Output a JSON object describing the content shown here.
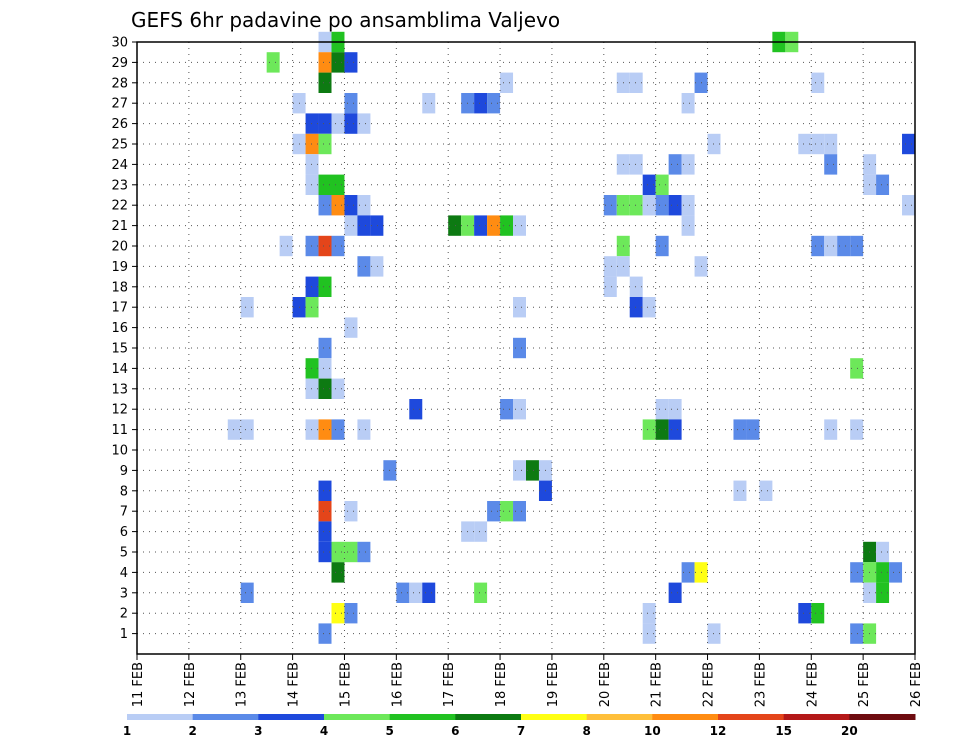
{
  "chart_data": {
    "type": "heatmap",
    "title": "GEFS 6hr padavine po ansamblima Valjevo",
    "xlabel": "",
    "ylabel": "",
    "x_tick_labels": [
      "11 FEB",
      "12 FEB",
      "13 FEB",
      "14 FEB",
      "15 FEB",
      "16 FEB",
      "17 FEB",
      "18 FEB",
      "19 FEB",
      "20 FEB",
      "21 FEB",
      "22 FEB",
      "23 FEB",
      "24 FEB",
      "25 FEB",
      "26 FEB"
    ],
    "y_tick_labels": [
      "1",
      "2",
      "3",
      "4",
      "5",
      "6",
      "7",
      "8",
      "9",
      "10",
      "11",
      "12",
      "13",
      "14",
      "15",
      "16",
      "17",
      "18",
      "19",
      "20",
      "21",
      "22",
      "23",
      "24",
      "25",
      "26",
      "27",
      "28",
      "29",
      "30"
    ],
    "x_range_days": [
      11,
      26
    ],
    "y_range": [
      0,
      30
    ],
    "time_step_hours": 6,
    "grid": true,
    "colorbar": {
      "placement": "bottom",
      "levels": [
        "1",
        "2",
        "3",
        "4",
        "5",
        "6",
        "7",
        "8",
        "10",
        "12",
        "15",
        "20"
      ],
      "colors": [
        "#b9cdf5",
        "#5b8ae8",
        "#1e49dc",
        "#6de85a",
        "#21c221",
        "#0d7a12",
        "#ffff14",
        "#ffbf3a",
        "#ff8c12",
        "#e4451a",
        "#b41818",
        "#6e0c10"
      ]
    },
    "cells": [
      {
        "member": 30,
        "day": 14.625,
        "level": 1
      },
      {
        "member": 30,
        "day": 14.875,
        "level": 5
      },
      {
        "member": 30,
        "day": 23.375,
        "level": 5
      },
      {
        "member": 30,
        "day": 23.625,
        "level": 4
      },
      {
        "member": 29,
        "day": 13.625,
        "level": 4
      },
      {
        "member": 29,
        "day": 14.625,
        "level": 10
      },
      {
        "member": 29,
        "day": 14.875,
        "level": 6
      },
      {
        "member": 29,
        "day": 15.125,
        "level": 3
      },
      {
        "member": 28,
        "day": 14.625,
        "level": 6
      },
      {
        "member": 28,
        "day": 18.125,
        "level": 1
      },
      {
        "member": 28,
        "day": 20.375,
        "level": 1
      },
      {
        "member": 28,
        "day": 20.625,
        "level": 1
      },
      {
        "member": 28,
        "day": 21.875,
        "level": 2
      },
      {
        "member": 28,
        "day": 24.125,
        "level": 1
      },
      {
        "member": 27,
        "day": 14.125,
        "level": 1
      },
      {
        "member": 27,
        "day": 15.125,
        "level": 2
      },
      {
        "member": 27,
        "day": 16.625,
        "level": 1
      },
      {
        "member": 27,
        "day": 17.375,
        "level": 2
      },
      {
        "member": 27,
        "day": 17.625,
        "level": 3
      },
      {
        "member": 27,
        "day": 17.875,
        "level": 2
      },
      {
        "member": 27,
        "day": 21.625,
        "level": 1
      },
      {
        "member": 26,
        "day": 14.375,
        "level": 3
      },
      {
        "member": 26,
        "day": 14.625,
        "level": 3
      },
      {
        "member": 26,
        "day": 14.875,
        "level": 1
      },
      {
        "member": 26,
        "day": 15.125,
        "level": 3
      },
      {
        "member": 26,
        "day": 15.375,
        "level": 1
      },
      {
        "member": 25,
        "day": 14.125,
        "level": 1
      },
      {
        "member": 25,
        "day": 14.375,
        "level": 10
      },
      {
        "member": 25,
        "day": 14.625,
        "level": 4
      },
      {
        "member": 25,
        "day": 22.125,
        "level": 1
      },
      {
        "member": 25,
        "day": 23.875,
        "level": 1
      },
      {
        "member": 25,
        "day": 24.125,
        "level": 1
      },
      {
        "member": 25,
        "day": 24.375,
        "level": 1
      },
      {
        "member": 25,
        "day": 25.875,
        "level": 3
      },
      {
        "member": 24,
        "day": 14.375,
        "level": 1
      },
      {
        "member": 24,
        "day": 20.375,
        "level": 1
      },
      {
        "member": 24,
        "day": 20.625,
        "level": 1
      },
      {
        "member": 24,
        "day": 21.375,
        "level": 2
      },
      {
        "member": 24,
        "day": 21.625,
        "level": 1
      },
      {
        "member": 24,
        "day": 24.375,
        "level": 2
      },
      {
        "member": 24,
        "day": 25.125,
        "level": 1
      },
      {
        "member": 23,
        "day": 14.375,
        "level": 1
      },
      {
        "member": 23,
        "day": 14.625,
        "level": 5
      },
      {
        "member": 23,
        "day": 14.875,
        "level": 5
      },
      {
        "member": 23,
        "day": 20.875,
        "level": 3
      },
      {
        "member": 23,
        "day": 21.125,
        "level": 4
      },
      {
        "member": 23,
        "day": 25.125,
        "level": 1
      },
      {
        "member": 23,
        "day": 25.375,
        "level": 2
      },
      {
        "member": 22,
        "day": 14.625,
        "level": 2
      },
      {
        "member": 22,
        "day": 14.875,
        "level": 10
      },
      {
        "member": 22,
        "day": 15.125,
        "level": 3
      },
      {
        "member": 22,
        "day": 15.375,
        "level": 1
      },
      {
        "member": 22,
        "day": 20.125,
        "level": 2
      },
      {
        "member": 22,
        "day": 20.375,
        "level": 4
      },
      {
        "member": 22,
        "day": 20.625,
        "level": 4
      },
      {
        "member": 22,
        "day": 20.875,
        "level": 1
      },
      {
        "member": 22,
        "day": 21.125,
        "level": 2
      },
      {
        "member": 22,
        "day": 21.375,
        "level": 3
      },
      {
        "member": 22,
        "day": 21.625,
        "level": 1
      },
      {
        "member": 22,
        "day": 25.875,
        "level": 1
      },
      {
        "member": 21,
        "day": 15.125,
        "level": 1
      },
      {
        "member": 21,
        "day": 15.375,
        "level": 3
      },
      {
        "member": 21,
        "day": 15.625,
        "level": 3
      },
      {
        "member": 21,
        "day": 17.125,
        "level": 6
      },
      {
        "member": 21,
        "day": 17.375,
        "level": 4
      },
      {
        "member": 21,
        "day": 17.625,
        "level": 3
      },
      {
        "member": 21,
        "day": 17.875,
        "level": 10
      },
      {
        "member": 21,
        "day": 18.125,
        "level": 5
      },
      {
        "member": 21,
        "day": 18.375,
        "level": 1
      },
      {
        "member": 21,
        "day": 21.625,
        "level": 1
      },
      {
        "member": 20,
        "day": 13.875,
        "level": 1
      },
      {
        "member": 20,
        "day": 14.375,
        "level": 2
      },
      {
        "member": 20,
        "day": 14.625,
        "level": 12
      },
      {
        "member": 20,
        "day": 14.875,
        "level": 2
      },
      {
        "member": 20,
        "day": 20.375,
        "level": 4
      },
      {
        "member": 20,
        "day": 21.125,
        "level": 2
      },
      {
        "member": 20,
        "day": 24.125,
        "level": 2
      },
      {
        "member": 20,
        "day": 24.375,
        "level": 1
      },
      {
        "member": 20,
        "day": 24.625,
        "level": 2
      },
      {
        "member": 20,
        "day": 24.875,
        "level": 2
      },
      {
        "member": 19,
        "day": 15.375,
        "level": 2
      },
      {
        "member": 19,
        "day": 15.625,
        "level": 1
      },
      {
        "member": 19,
        "day": 20.125,
        "level": 1
      },
      {
        "member": 19,
        "day": 20.375,
        "level": 1
      },
      {
        "member": 19,
        "day": 21.875,
        "level": 1
      },
      {
        "member": 18,
        "day": 14.375,
        "level": 3
      },
      {
        "member": 18,
        "day": 14.625,
        "level": 5
      },
      {
        "member": 18,
        "day": 20.125,
        "level": 1
      },
      {
        "member": 18,
        "day": 20.625,
        "level": 1
      },
      {
        "member": 17,
        "day": 13.125,
        "level": 1
      },
      {
        "member": 17,
        "day": 14.125,
        "level": 3
      },
      {
        "member": 17,
        "day": 14.375,
        "level": 4
      },
      {
        "member": 17,
        "day": 18.375,
        "level": 1
      },
      {
        "member": 17,
        "day": 20.625,
        "level": 3
      },
      {
        "member": 17,
        "day": 20.875,
        "level": 1
      },
      {
        "member": 16,
        "day": 15.125,
        "level": 1
      },
      {
        "member": 15,
        "day": 14.625,
        "level": 2
      },
      {
        "member": 15,
        "day": 18.375,
        "level": 2
      },
      {
        "member": 14,
        "day": 14.375,
        "level": 5
      },
      {
        "member": 14,
        "day": 14.625,
        "level": 1
      },
      {
        "member": 14,
        "day": 24.875,
        "level": 4
      },
      {
        "member": 13,
        "day": 14.375,
        "level": 1
      },
      {
        "member": 13,
        "day": 14.625,
        "level": 6
      },
      {
        "member": 13,
        "day": 14.875,
        "level": 1
      },
      {
        "member": 12,
        "day": 16.375,
        "level": 3
      },
      {
        "member": 12,
        "day": 18.125,
        "level": 2
      },
      {
        "member": 12,
        "day": 18.375,
        "level": 1
      },
      {
        "member": 12,
        "day": 21.125,
        "level": 1
      },
      {
        "member": 12,
        "day": 21.375,
        "level": 1
      },
      {
        "member": 11,
        "day": 12.875,
        "level": 1
      },
      {
        "member": 11,
        "day": 13.125,
        "level": 1
      },
      {
        "member": 11,
        "day": 14.375,
        "level": 1
      },
      {
        "member": 11,
        "day": 14.625,
        "level": 10
      },
      {
        "member": 11,
        "day": 14.875,
        "level": 2
      },
      {
        "member": 11,
        "day": 15.375,
        "level": 1
      },
      {
        "member": 11,
        "day": 20.875,
        "level": 4
      },
      {
        "member": 11,
        "day": 21.125,
        "level": 6
      },
      {
        "member": 11,
        "day": 21.375,
        "level": 3
      },
      {
        "member": 11,
        "day": 22.625,
        "level": 2
      },
      {
        "member": 11,
        "day": 22.875,
        "level": 2
      },
      {
        "member": 11,
        "day": 24.375,
        "level": 1
      },
      {
        "member": 11,
        "day": 24.875,
        "level": 1
      },
      {
        "member": 9,
        "day": 15.875,
        "level": 2
      },
      {
        "member": 9,
        "day": 18.375,
        "level": 1
      },
      {
        "member": 9,
        "day": 18.625,
        "level": 6
      },
      {
        "member": 9,
        "day": 18.875,
        "level": 1
      },
      {
        "member": 8,
        "day": 14.625,
        "level": 3
      },
      {
        "member": 8,
        "day": 18.875,
        "level": 3
      },
      {
        "member": 8,
        "day": 22.625,
        "level": 1
      },
      {
        "member": 8,
        "day": 23.125,
        "level": 1
      },
      {
        "member": 7,
        "day": 14.625,
        "level": 12
      },
      {
        "member": 7,
        "day": 15.125,
        "level": 1
      },
      {
        "member": 7,
        "day": 17.875,
        "level": 2
      },
      {
        "member": 7,
        "day": 18.125,
        "level": 4
      },
      {
        "member": 7,
        "day": 18.375,
        "level": 2
      },
      {
        "member": 6,
        "day": 14.625,
        "level": 3
      },
      {
        "member": 6,
        "day": 17.375,
        "level": 1
      },
      {
        "member": 6,
        "day": 17.625,
        "level": 1
      },
      {
        "member": 5,
        "day": 14.625,
        "level": 3
      },
      {
        "member": 5,
        "day": 14.875,
        "level": 4
      },
      {
        "member": 5,
        "day": 15.125,
        "level": 4
      },
      {
        "member": 5,
        "day": 15.375,
        "level": 2
      },
      {
        "member": 5,
        "day": 25.125,
        "level": 6
      },
      {
        "member": 5,
        "day": 25.375,
        "level": 1
      },
      {
        "member": 4,
        "day": 14.875,
        "level": 6
      },
      {
        "member": 4,
        "day": 21.625,
        "level": 2
      },
      {
        "member": 4,
        "day": 21.875,
        "level": 7
      },
      {
        "member": 4,
        "day": 24.875,
        "level": 2
      },
      {
        "member": 4,
        "day": 25.125,
        "level": 4
      },
      {
        "member": 4,
        "day": 25.375,
        "level": 5
      },
      {
        "member": 4,
        "day": 25.625,
        "level": 2
      },
      {
        "member": 3,
        "day": 13.125,
        "level": 2
      },
      {
        "member": 3,
        "day": 16.125,
        "level": 2
      },
      {
        "member": 3,
        "day": 16.375,
        "level": 1
      },
      {
        "member": 3,
        "day": 16.625,
        "level": 3
      },
      {
        "member": 3,
        "day": 17.625,
        "level": 4
      },
      {
        "member": 3,
        "day": 21.375,
        "level": 3
      },
      {
        "member": 3,
        "day": 25.125,
        "level": 1
      },
      {
        "member": 3,
        "day": 25.375,
        "level": 5
      },
      {
        "member": 2,
        "day": 14.875,
        "level": 7
      },
      {
        "member": 2,
        "day": 15.125,
        "level": 2
      },
      {
        "member": 2,
        "day": 20.875,
        "level": 1
      },
      {
        "member": 2,
        "day": 23.875,
        "level": 3
      },
      {
        "member": 2,
        "day": 24.125,
        "level": 5
      },
      {
        "member": 1,
        "day": 14.625,
        "level": 2
      },
      {
        "member": 1,
        "day": 20.875,
        "level": 1
      },
      {
        "member": 1,
        "day": 22.125,
        "level": 1
      },
      {
        "member": 1,
        "day": 24.875,
        "level": 2
      },
      {
        "member": 1,
        "day": 25.125,
        "level": 4
      }
    ]
  }
}
